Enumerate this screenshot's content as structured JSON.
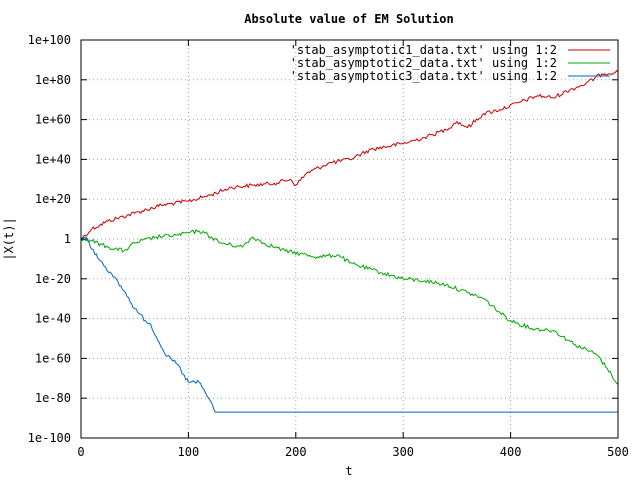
{
  "chart_data": {
    "type": "line",
    "title": "Absolute value of EM Solution",
    "xlabel": "t",
    "ylabel": "|X(t)|",
    "xlim": [
      0,
      500
    ],
    "ylim_log10": [
      -100,
      100
    ],
    "grid": true,
    "legend_position": "top-right",
    "x_ticks": [
      0,
      100,
      200,
      300,
      400,
      500
    ],
    "x_tick_labels": [
      "0",
      "100",
      "200",
      "300",
      "400",
      "500"
    ],
    "y_ticks_log10": [
      -100,
      -80,
      -60,
      -40,
      -20,
      0,
      20,
      40,
      60,
      80,
      100
    ],
    "y_tick_labels": [
      "1e-100",
      "1e-80",
      "1e-60",
      "1e-40",
      "1e-20",
      "1",
      "1e+20",
      "1e+40",
      "1e+60",
      "1e+80",
      "1e+100"
    ],
    "series": [
      {
        "name": "'stab_asymptotic1_data.txt' using 1:2",
        "color": "#cc0000",
        "x": [
          0,
          10,
          25,
          50,
          75,
          100,
          120,
          140,
          160,
          180,
          195,
          200,
          210,
          230,
          250,
          270,
          300,
          320,
          340,
          350,
          360,
          375,
          390,
          410,
          425,
          440,
          455,
          470,
          485,
          500
        ],
        "log10y": [
          0,
          5,
          9,
          13,
          17,
          19,
          22,
          26,
          27,
          28,
          30,
          27,
          33,
          38,
          40,
          45,
          48,
          51,
          55,
          59,
          56,
          63,
          65,
          69,
          72,
          71,
          75,
          78,
          83,
          84
        ]
      },
      {
        "name": "'stab_asymptotic2_data.txt' using 1:2",
        "color": "#00aa00",
        "x": [
          0,
          10,
          25,
          40,
          50,
          70,
          90,
          110,
          115,
          130,
          150,
          160,
          170,
          190,
          220,
          240,
          250,
          280,
          300,
          320,
          340,
          360,
          375,
          390,
          400,
          420,
          440,
          460,
          480,
          490,
          500
        ],
        "log10y": [
          0,
          -1,
          -4,
          -6,
          -2,
          1,
          2,
          4,
          3,
          -2,
          -4,
          1,
          -2,
          -6,
          -9,
          -8,
          -12,
          -17,
          -20,
          -21,
          -23,
          -27,
          -30,
          -37,
          -41,
          -45,
          -46,
          -53,
          -58,
          -65,
          -73
        ]
      },
      {
        "name": "'stab_asymptotic3_data.txt' using 1:2",
        "color": "#0066cc",
        "x": [
          0,
          5,
          10,
          20,
          30,
          40,
          50,
          60,
          65,
          70,
          80,
          90,
          95,
          100,
          110,
          120,
          125,
          130,
          200,
          300,
          400,
          500
        ],
        "log10y": [
          0,
          1,
          -5,
          -12,
          -19,
          -26,
          -35,
          -41,
          -43,
          -49,
          -59,
          -63,
          -68,
          -72,
          -72,
          -81,
          -87,
          -87,
          -87,
          -87,
          -87,
          -87
        ]
      }
    ]
  }
}
